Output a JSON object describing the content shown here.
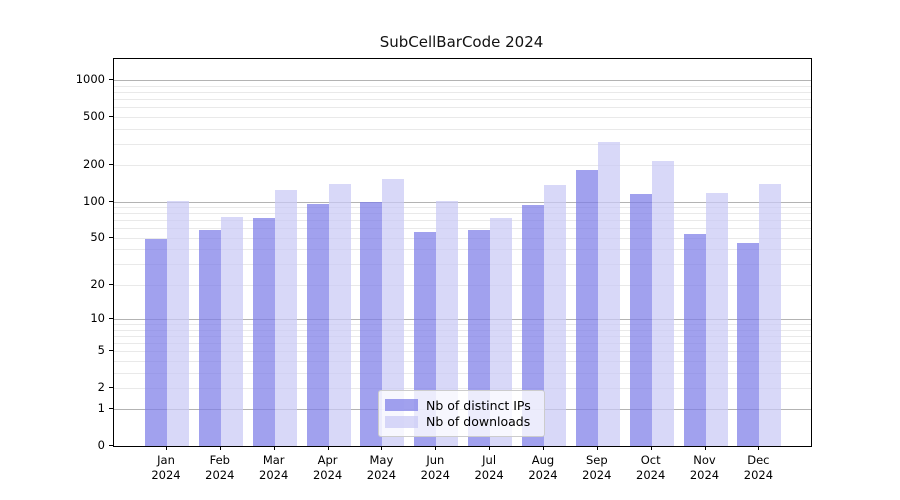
{
  "figure": {
    "title": "SubCellBarCode 2024"
  },
  "chart_data": {
    "type": "bar",
    "title": "SubCellBarCode 2024",
    "categories": [
      "Jan",
      "Feb",
      "Mar",
      "Apr",
      "May",
      "Jun",
      "Jul",
      "Aug",
      "Sep",
      "Oct",
      "Nov",
      "Dec"
    ],
    "x_year_label": "2024",
    "series": [
      {
        "key": "ips",
        "name": "Nb of distinct IPs",
        "color": "#7d7de8",
        "values": [
          49,
          58,
          73,
          96,
          100,
          56,
          58,
          93,
          181,
          115,
          54,
          45
        ]
      },
      {
        "key": "downloads",
        "name": "Nb of downloads",
        "color": "#c9c9f5",
        "values": [
          102,
          74,
          124,
          139,
          155,
          101,
          73,
          136,
          310,
          215,
          117,
          139
        ]
      }
    ],
    "bar_alpha": 0.72,
    "y_ticks": [
      "1000",
      "500",
      "200",
      "100",
      "50",
      "20",
      "10",
      "5",
      "2",
      "1",
      "0"
    ],
    "y_scale": "log1p",
    "ylim": [
      0,
      1500
    ],
    "grid": true,
    "grid_major_values": [
      1,
      10,
      100,
      1000
    ],
    "legend_position": "lower center",
    "colors": {
      "ips_perceived": "#a5a5f1",
      "downloads_perceived": "#d8d8f8",
      "grid_major": "#b3b3b3",
      "grid_minor": "#e9e9e9"
    }
  }
}
